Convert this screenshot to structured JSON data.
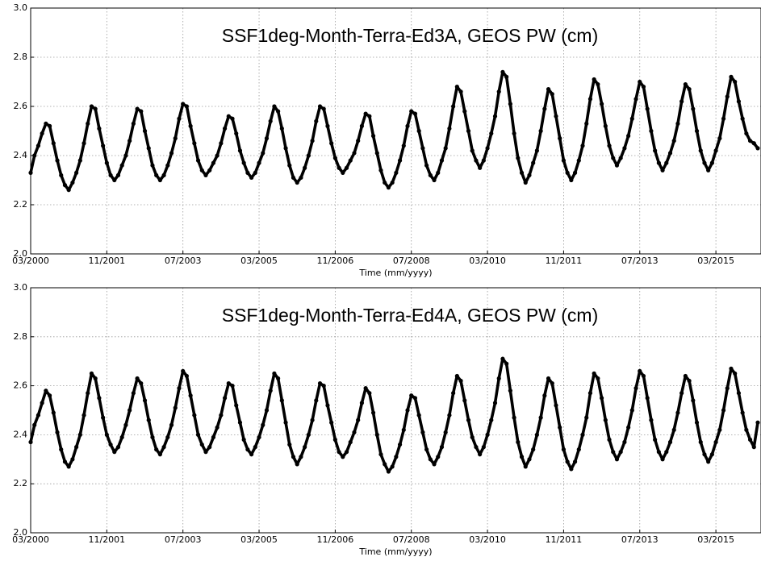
{
  "chart_data": [
    {
      "type": "line",
      "title": "SSF1deg-Month-Terra-Ed3A, GEOS PW (cm)",
      "x_label": "Time (mm/yyyy)",
      "xlim": [
        "2000-03",
        "2016-02"
      ],
      "xticks": [
        {
          "value": "2000-03",
          "label": "03/2000"
        },
        {
          "value": "2001-11",
          "label": "11/2001"
        },
        {
          "value": "2003-07",
          "label": "07/2003"
        },
        {
          "value": "2005-03",
          "label": "03/2005"
        },
        {
          "value": "2006-11",
          "label": "11/2006"
        },
        {
          "value": "2008-07",
          "label": "07/2008"
        },
        {
          "value": "2010-03",
          "label": "03/2010"
        },
        {
          "value": "2011-11",
          "label": "11/2011"
        },
        {
          "value": "2013-07",
          "label": "07/2013"
        },
        {
          "value": "2015-03",
          "label": "03/2015"
        }
      ],
      "ylim": [
        2,
        3
      ],
      "yticks": [
        {
          "value": 2,
          "label": "2.0"
        },
        2.2,
        2.4,
        2.6,
        2.8,
        {
          "value": 3,
          "label": "3.0"
        }
      ],
      "grid": true,
      "color": "#000000",
      "x": [
        "2000-03",
        "2000-04",
        "2000-05",
        "2000-06",
        "2000-07",
        "2000-08",
        "2000-09",
        "2000-10",
        "2000-11",
        "2000-12",
        "2001-01",
        "2001-02",
        "2001-03",
        "2001-04",
        "2001-05",
        "2001-06",
        "2001-07",
        "2001-08",
        "2001-09",
        "2001-10",
        "2001-11",
        "2001-12",
        "2002-01",
        "2002-02",
        "2002-03",
        "2002-04",
        "2002-05",
        "2002-06",
        "2002-07",
        "2002-08",
        "2002-09",
        "2002-10",
        "2002-11",
        "2002-12",
        "2003-01",
        "2003-02",
        "2003-03",
        "2003-04",
        "2003-05",
        "2003-06",
        "2003-07",
        "2003-08",
        "2003-09",
        "2003-10",
        "2003-11",
        "2003-12",
        "2004-01",
        "2004-02",
        "2004-03",
        "2004-04",
        "2004-05",
        "2004-06",
        "2004-07",
        "2004-08",
        "2004-09",
        "2004-10",
        "2004-11",
        "2004-12",
        "2005-01",
        "2005-02",
        "2005-03",
        "2005-04",
        "2005-05",
        "2005-06",
        "2005-07",
        "2005-08",
        "2005-09",
        "2005-10",
        "2005-11",
        "2005-12",
        "2006-01",
        "2006-02",
        "2006-03",
        "2006-04",
        "2006-05",
        "2006-06",
        "2006-07",
        "2006-08",
        "2006-09",
        "2006-10",
        "2006-11",
        "2006-12",
        "2007-01",
        "2007-02",
        "2007-03",
        "2007-04",
        "2007-05",
        "2007-06",
        "2007-07",
        "2007-08",
        "2007-09",
        "2007-10",
        "2007-11",
        "2007-12",
        "2008-01",
        "2008-02",
        "2008-03",
        "2008-04",
        "2008-05",
        "2008-06",
        "2008-07",
        "2008-08",
        "2008-09",
        "2008-10",
        "2008-11",
        "2008-12",
        "2009-01",
        "2009-02",
        "2009-03",
        "2009-04",
        "2009-05",
        "2009-06",
        "2009-07",
        "2009-08",
        "2009-09",
        "2009-10",
        "2009-11",
        "2009-12",
        "2010-01",
        "2010-02",
        "2010-03",
        "2010-04",
        "2010-05",
        "2010-06",
        "2010-07",
        "2010-08",
        "2010-09",
        "2010-10",
        "2010-11",
        "2010-12",
        "2011-01",
        "2011-02",
        "2011-03",
        "2011-04",
        "2011-05",
        "2011-06",
        "2011-07",
        "2011-08",
        "2011-09",
        "2011-10",
        "2011-11",
        "2011-12",
        "2012-01",
        "2012-02",
        "2012-03",
        "2012-04",
        "2012-05",
        "2012-06",
        "2012-07",
        "2012-08",
        "2012-09",
        "2012-10",
        "2012-11",
        "2012-12",
        "2013-01",
        "2013-02",
        "2013-03",
        "2013-04",
        "2013-05",
        "2013-06",
        "2013-07",
        "2013-08",
        "2013-09",
        "2013-10",
        "2013-11",
        "2013-12",
        "2014-01",
        "2014-02",
        "2014-03",
        "2014-04",
        "2014-05",
        "2014-06",
        "2014-07",
        "2014-08",
        "2014-09",
        "2014-10",
        "2014-11",
        "2014-12",
        "2015-01",
        "2015-02",
        "2015-03",
        "2015-04",
        "2015-05",
        "2015-06",
        "2015-07",
        "2015-08",
        "2015-09",
        "2015-10",
        "2015-11",
        "2015-12",
        "2016-01",
        "2016-02"
      ],
      "values": [
        2.33,
        2.4,
        2.44,
        2.49,
        2.53,
        2.52,
        2.45,
        2.38,
        2.32,
        2.28,
        2.26,
        2.29,
        2.33,
        2.38,
        2.45,
        2.53,
        2.6,
        2.59,
        2.51,
        2.44,
        2.37,
        2.32,
        2.3,
        2.32,
        2.36,
        2.4,
        2.46,
        2.53,
        2.59,
        2.58,
        2.5,
        2.43,
        2.36,
        2.32,
        2.3,
        2.32,
        2.36,
        2.41,
        2.47,
        2.55,
        2.61,
        2.6,
        2.52,
        2.45,
        2.38,
        2.34,
        2.32,
        2.34,
        2.37,
        2.4,
        2.45,
        2.51,
        2.56,
        2.55,
        2.49,
        2.42,
        2.37,
        2.33,
        2.31,
        2.33,
        2.37,
        2.41,
        2.47,
        2.54,
        2.6,
        2.58,
        2.51,
        2.43,
        2.36,
        2.31,
        2.29,
        2.31,
        2.35,
        2.4,
        2.46,
        2.54,
        2.6,
        2.59,
        2.52,
        2.45,
        2.39,
        2.35,
        2.33,
        2.35,
        2.38,
        2.41,
        2.46,
        2.52,
        2.57,
        2.56,
        2.48,
        2.41,
        2.34,
        2.29,
        2.27,
        2.29,
        2.33,
        2.38,
        2.44,
        2.52,
        2.58,
        2.57,
        2.5,
        2.43,
        2.36,
        2.32,
        2.3,
        2.33,
        2.38,
        2.43,
        2.51,
        2.6,
        2.68,
        2.66,
        2.58,
        2.5,
        2.42,
        2.38,
        2.35,
        2.38,
        2.43,
        2.49,
        2.56,
        2.66,
        2.74,
        2.72,
        2.61,
        2.49,
        2.39,
        2.33,
        2.29,
        2.32,
        2.37,
        2.42,
        2.5,
        2.59,
        2.67,
        2.65,
        2.56,
        2.47,
        2.38,
        2.33,
        2.3,
        2.33,
        2.38,
        2.44,
        2.53,
        2.63,
        2.71,
        2.69,
        2.61,
        2.52,
        2.44,
        2.39,
        2.36,
        2.39,
        2.43,
        2.48,
        2.55,
        2.63,
        2.7,
        2.68,
        2.59,
        2.5,
        2.42,
        2.37,
        2.34,
        2.37,
        2.41,
        2.46,
        2.53,
        2.62,
        2.69,
        2.67,
        2.59,
        2.5,
        2.42,
        2.37,
        2.34,
        2.37,
        2.42,
        2.47,
        2.55,
        2.64,
        2.72,
        2.7,
        2.62,
        2.55,
        2.49,
        2.46,
        2.45,
        2.43
      ]
    },
    {
      "type": "line",
      "title": "SSF1deg-Month-Terra-Ed4A, GEOS PW (cm)",
      "x_label": "Time (mm/yyyy)",
      "xlim": [
        "2000-03",
        "2016-02"
      ],
      "xticks": [
        {
          "value": "2000-03",
          "label": "03/2000"
        },
        {
          "value": "2001-11",
          "label": "11/2001"
        },
        {
          "value": "2003-07",
          "label": "07/2003"
        },
        {
          "value": "2005-03",
          "label": "03/2005"
        },
        {
          "value": "2006-11",
          "label": "11/2006"
        },
        {
          "value": "2008-07",
          "label": "07/2008"
        },
        {
          "value": "2010-03",
          "label": "03/2010"
        },
        {
          "value": "2011-11",
          "label": "11/2011"
        },
        {
          "value": "2013-07",
          "label": "07/2013"
        },
        {
          "value": "2015-03",
          "label": "03/2015"
        }
      ],
      "ylim": [
        2,
        3
      ],
      "yticks": [
        {
          "value": 2,
          "label": "2.0"
        },
        2.2,
        2.4,
        2.6,
        2.8,
        {
          "value": 3,
          "label": "3.0"
        }
      ],
      "grid": true,
      "color": "#000000",
      "x": [
        "2000-03",
        "2000-04",
        "2000-05",
        "2000-06",
        "2000-07",
        "2000-08",
        "2000-09",
        "2000-10",
        "2000-11",
        "2000-12",
        "2001-01",
        "2001-02",
        "2001-03",
        "2001-04",
        "2001-05",
        "2001-06",
        "2001-07",
        "2001-08",
        "2001-09",
        "2001-10",
        "2001-11",
        "2001-12",
        "2002-01",
        "2002-02",
        "2002-03",
        "2002-04",
        "2002-05",
        "2002-06",
        "2002-07",
        "2002-08",
        "2002-09",
        "2002-10",
        "2002-11",
        "2002-12",
        "2003-01",
        "2003-02",
        "2003-03",
        "2003-04",
        "2003-05",
        "2003-06",
        "2003-07",
        "2003-08",
        "2003-09",
        "2003-10",
        "2003-11",
        "2003-12",
        "2004-01",
        "2004-02",
        "2004-03",
        "2004-04",
        "2004-05",
        "2004-06",
        "2004-07",
        "2004-08",
        "2004-09",
        "2004-10",
        "2004-11",
        "2004-12",
        "2005-01",
        "2005-02",
        "2005-03",
        "2005-04",
        "2005-05",
        "2005-06",
        "2005-07",
        "2005-08",
        "2005-09",
        "2005-10",
        "2005-11",
        "2005-12",
        "2006-01",
        "2006-02",
        "2006-03",
        "2006-04",
        "2006-05",
        "2006-06",
        "2006-07",
        "2006-08",
        "2006-09",
        "2006-10",
        "2006-11",
        "2006-12",
        "2007-01",
        "2007-02",
        "2007-03",
        "2007-04",
        "2007-05",
        "2007-06",
        "2007-07",
        "2007-08",
        "2007-09",
        "2007-10",
        "2007-11",
        "2007-12",
        "2008-01",
        "2008-02",
        "2008-03",
        "2008-04",
        "2008-05",
        "2008-06",
        "2008-07",
        "2008-08",
        "2008-09",
        "2008-10",
        "2008-11",
        "2008-12",
        "2009-01",
        "2009-02",
        "2009-03",
        "2009-04",
        "2009-05",
        "2009-06",
        "2009-07",
        "2009-08",
        "2009-09",
        "2009-10",
        "2009-11",
        "2009-12",
        "2010-01",
        "2010-02",
        "2010-03",
        "2010-04",
        "2010-05",
        "2010-06",
        "2010-07",
        "2010-08",
        "2010-09",
        "2010-10",
        "2010-11",
        "2010-12",
        "2011-01",
        "2011-02",
        "2011-03",
        "2011-04",
        "2011-05",
        "2011-06",
        "2011-07",
        "2011-08",
        "2011-09",
        "2011-10",
        "2011-11",
        "2011-12",
        "2012-01",
        "2012-02",
        "2012-03",
        "2012-04",
        "2012-05",
        "2012-06",
        "2012-07",
        "2012-08",
        "2012-09",
        "2012-10",
        "2012-11",
        "2012-12",
        "2013-01",
        "2013-02",
        "2013-03",
        "2013-04",
        "2013-05",
        "2013-06",
        "2013-07",
        "2013-08",
        "2013-09",
        "2013-10",
        "2013-11",
        "2013-12",
        "2014-01",
        "2014-02",
        "2014-03",
        "2014-04",
        "2014-05",
        "2014-06",
        "2014-07",
        "2014-08",
        "2014-09",
        "2014-10",
        "2014-11",
        "2014-12",
        "2015-01",
        "2015-02",
        "2015-03",
        "2015-04",
        "2015-05",
        "2015-06",
        "2015-07",
        "2015-08",
        "2015-09",
        "2015-10",
        "2015-11",
        "2015-12",
        "2016-01",
        "2016-02"
      ],
      "values": [
        2.37,
        2.44,
        2.48,
        2.53,
        2.58,
        2.56,
        2.49,
        2.41,
        2.34,
        2.29,
        2.27,
        2.3,
        2.35,
        2.4,
        2.48,
        2.57,
        2.65,
        2.63,
        2.55,
        2.47,
        2.4,
        2.36,
        2.33,
        2.35,
        2.39,
        2.44,
        2.5,
        2.57,
        2.63,
        2.61,
        2.54,
        2.46,
        2.39,
        2.34,
        2.32,
        2.35,
        2.39,
        2.44,
        2.51,
        2.59,
        2.66,
        2.64,
        2.56,
        2.48,
        2.4,
        2.36,
        2.33,
        2.35,
        2.39,
        2.43,
        2.48,
        2.55,
        2.61,
        2.6,
        2.52,
        2.45,
        2.38,
        2.34,
        2.32,
        2.35,
        2.39,
        2.44,
        2.5,
        2.58,
        2.65,
        2.63,
        2.54,
        2.45,
        2.36,
        2.31,
        2.28,
        2.31,
        2.35,
        2.4,
        2.46,
        2.54,
        2.61,
        2.6,
        2.52,
        2.45,
        2.38,
        2.33,
        2.31,
        2.33,
        2.37,
        2.41,
        2.46,
        2.53,
        2.59,
        2.57,
        2.49,
        2.4,
        2.32,
        2.28,
        2.25,
        2.27,
        2.31,
        2.36,
        2.42,
        2.5,
        2.56,
        2.55,
        2.48,
        2.41,
        2.34,
        2.3,
        2.28,
        2.31,
        2.35,
        2.41,
        2.48,
        2.57,
        2.64,
        2.62,
        2.54,
        2.46,
        2.39,
        2.35,
        2.32,
        2.35,
        2.4,
        2.46,
        2.53,
        2.63,
        2.71,
        2.69,
        2.58,
        2.47,
        2.37,
        2.31,
        2.27,
        2.3,
        2.34,
        2.4,
        2.47,
        2.56,
        2.63,
        2.61,
        2.52,
        2.43,
        2.34,
        2.29,
        2.26,
        2.29,
        2.34,
        2.4,
        2.47,
        2.57,
        2.65,
        2.63,
        2.55,
        2.46,
        2.38,
        2.33,
        2.3,
        2.33,
        2.37,
        2.43,
        2.5,
        2.59,
        2.66,
        2.64,
        2.55,
        2.46,
        2.38,
        2.33,
        2.3,
        2.33,
        2.37,
        2.42,
        2.49,
        2.57,
        2.64,
        2.62,
        2.54,
        2.45,
        2.37,
        2.32,
        2.29,
        2.32,
        2.37,
        2.42,
        2.5,
        2.59,
        2.67,
        2.65,
        2.57,
        2.49,
        2.42,
        2.38,
        2.35,
        2.45
      ]
    }
  ]
}
